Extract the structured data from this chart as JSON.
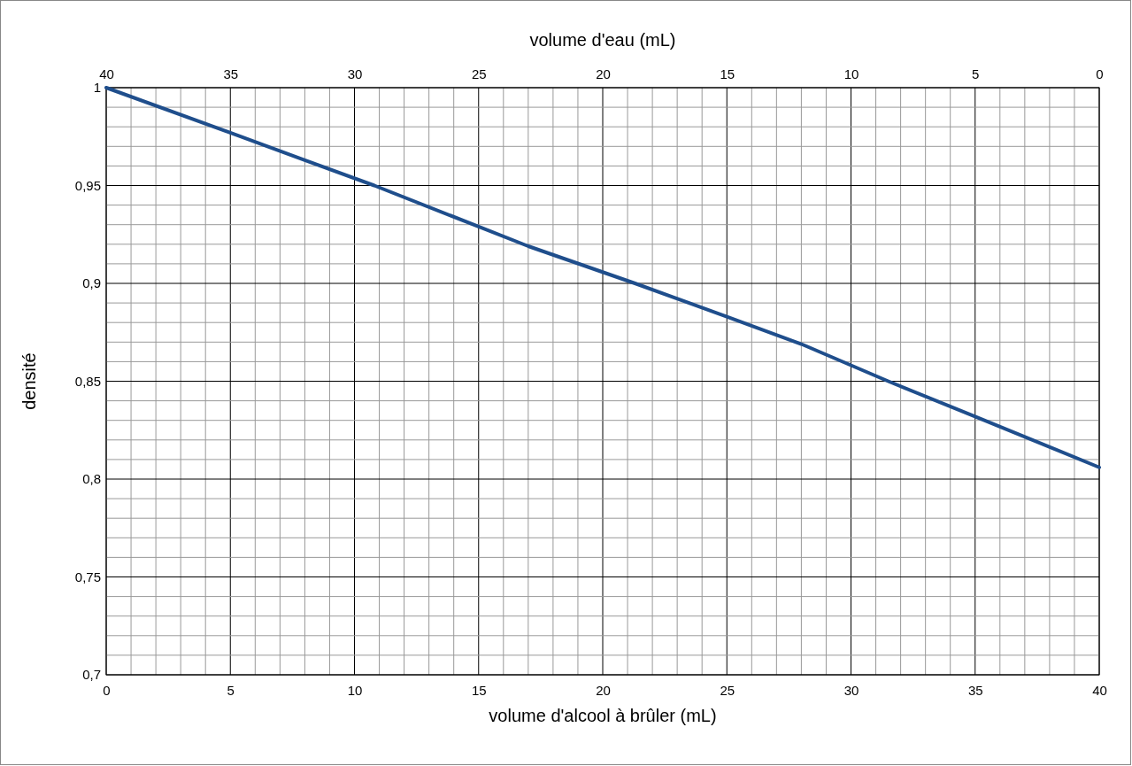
{
  "chart_data": {
    "type": "line",
    "xlabel": "volume d'alcool à brûler (mL)",
    "ylabel": "densité",
    "x2label": "volume d'eau (mL)",
    "x": [
      0,
      5,
      8,
      10.8,
      15,
      17,
      21.3,
      25,
      28,
      31.5,
      35,
      40
    ],
    "series": [
      {
        "color": "#1f4e8c",
        "values": [
          1,
          0.977,
          0.963,
          0.95,
          0.929,
          0.919,
          0.9,
          0.883,
          0.869,
          0.85,
          0.832,
          0.806
        ]
      }
    ],
    "xlim": [
      0,
      40
    ],
    "xticks": [
      0,
      5,
      10,
      15,
      20,
      25,
      30,
      35,
      40
    ],
    "x2lim": [
      40,
      0
    ],
    "x2ticks": [
      40,
      35,
      30,
      25,
      20,
      15,
      10,
      5,
      0
    ],
    "ylim": [
      0.7,
      1
    ],
    "yticks": [
      {
        "value": 0.7,
        "label": "0,7"
      },
      {
        "value": 0.75,
        "label": "0,75"
      },
      {
        "value": 0.8,
        "label": "0,8"
      },
      {
        "value": 0.85,
        "label": "0,85"
      },
      {
        "value": 0.9,
        "label": "0,9"
      },
      {
        "value": 0.95,
        "label": "0,95"
      },
      1
    ],
    "grid": true,
    "marker": "none",
    "line_style": "solid"
  }
}
